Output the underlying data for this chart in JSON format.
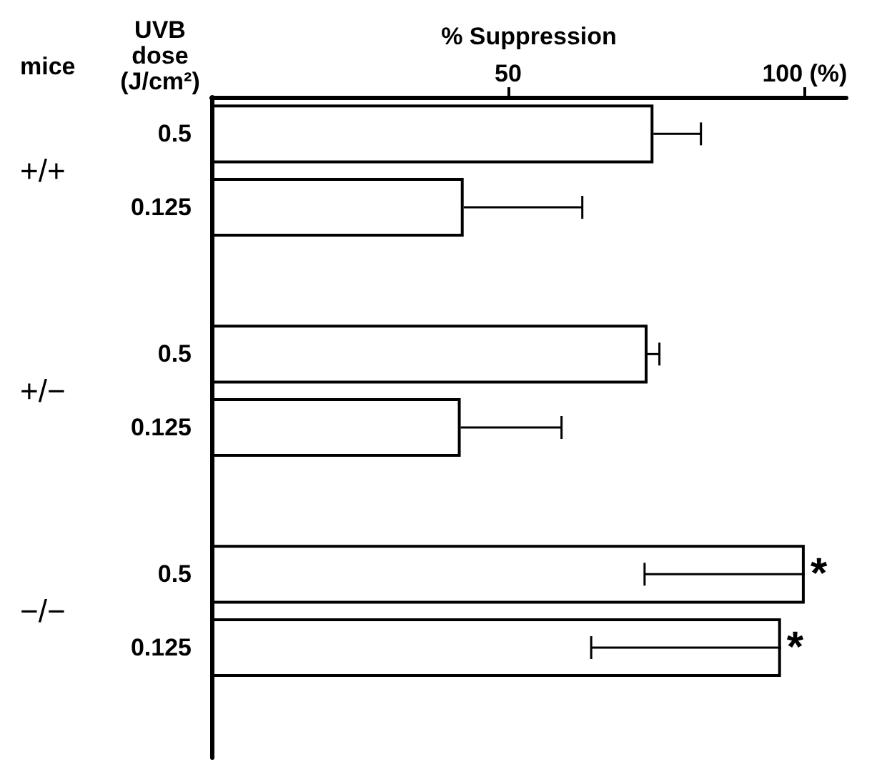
{
  "chart_data": {
    "type": "bar",
    "orientation": "horizontal",
    "xlabel": "% Suppression",
    "ylabel": "UVB dose (J/cm²)",
    "categories": [
      "0.5",
      "0.125",
      null,
      "0.5",
      "0.125",
      null,
      "0.5",
      "0.125",
      null
    ],
    "values": [
      74.5,
      42.5,
      null,
      73.5,
      42,
      null,
      100,
      96,
      null
    ],
    "errors": [
      [
        74.5,
        82.5
      ],
      [
        42.5,
        62.5
      ],
      null,
      [
        73.5,
        75.5
      ],
      [
        42,
        59
      ],
      null,
      [
        73,
        100
      ],
      [
        64,
        96
      ],
      null
    ],
    "value_labels": [
      null,
      null,
      null,
      null,
      null,
      null,
      "*",
      "*",
      null
    ],
    "color": "#ffffff",
    "xlim": [
      0,
      107
    ],
    "xticks": [
      50,
      {
        "value": 100,
        "label": "100 (%)"
      }
    ],
    "annotations": [
      "mice",
      "+/+",
      "+/−",
      "−/−"
    ],
    "grid": false
  }
}
